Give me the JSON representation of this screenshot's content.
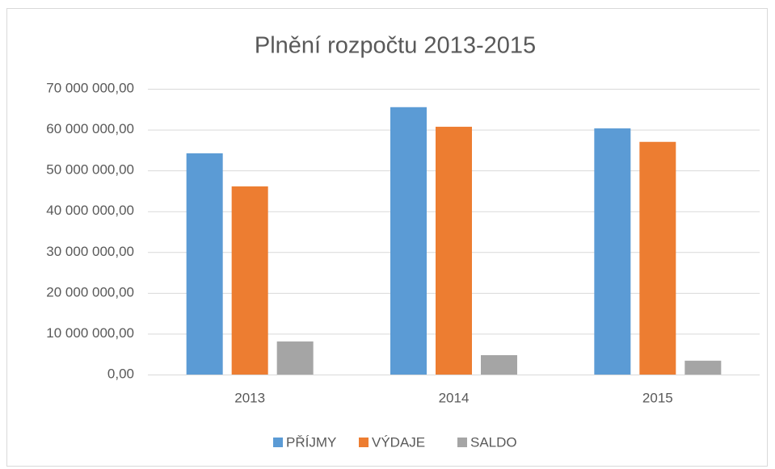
{
  "chart_data": {
    "type": "bar",
    "title": "Plnění rozpočtu 2013-2015",
    "categories": [
      "2013",
      "2014",
      "2015"
    ],
    "series": [
      {
        "name": "PŘÍJMY",
        "color": "#5b9bd5",
        "values": [
          54200000,
          65500000,
          60300000
        ]
      },
      {
        "name": "VÝDAJE",
        "color": "#ed7d31",
        "values": [
          46100000,
          60700000,
          57000000
        ]
      },
      {
        "name": "SALDO",
        "color": "#a5a5a5",
        "values": [
          8100000,
          4750000,
          3400000
        ]
      }
    ],
    "ylim": [
      0,
      70000000
    ],
    "yticks": [
      {
        "value": 0,
        "label": "0,00"
      },
      {
        "value": 10000000,
        "label": "10 000 000,00"
      },
      {
        "value": 20000000,
        "label": "20 000 000,00"
      },
      {
        "value": 30000000,
        "label": "30 000 000,00"
      },
      {
        "value": 40000000,
        "label": "40 000 000,00"
      },
      {
        "value": 50000000,
        "label": "50 000 000,00"
      },
      {
        "value": 60000000,
        "label": "60 000 000,00"
      },
      {
        "value": 70000000,
        "label": "70 000 000,00"
      }
    ],
    "grid": true,
    "legend": "bottom"
  }
}
